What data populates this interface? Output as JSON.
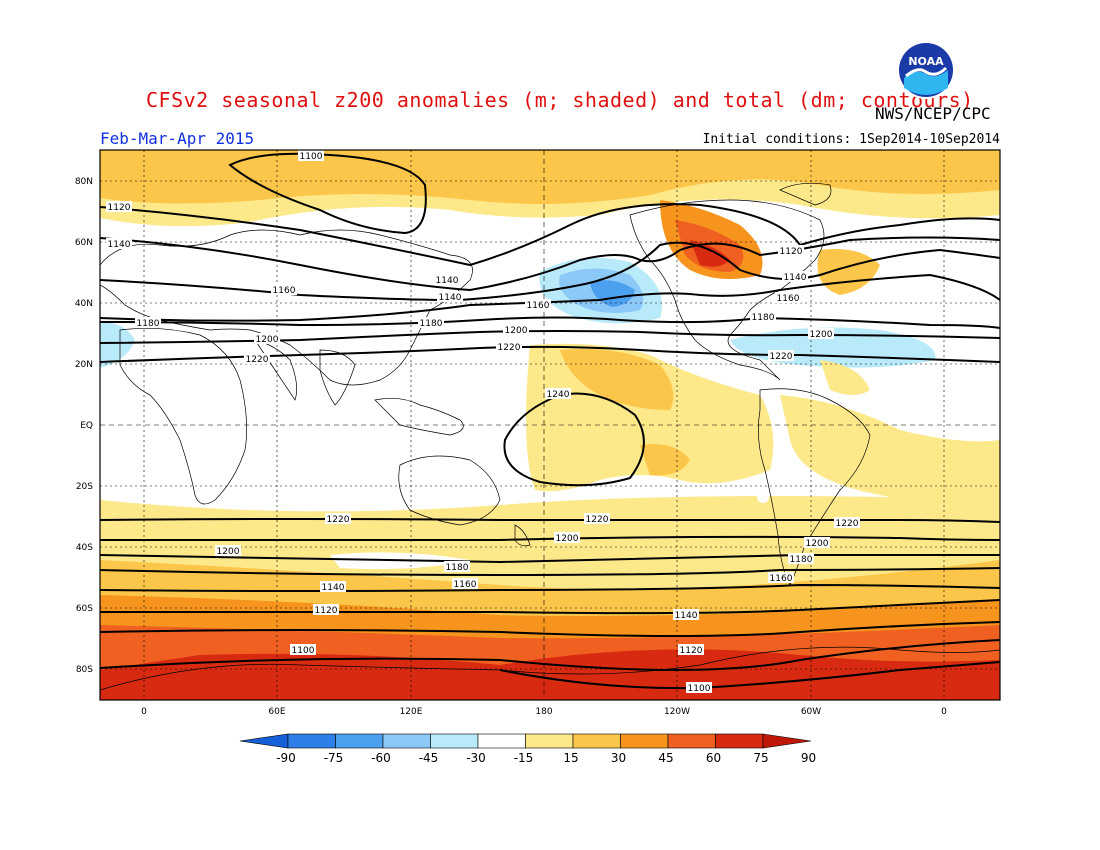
{
  "header": {
    "title": "CFSv2 seasonal z200 anomalies (m; shaded) and total (dm; contours)",
    "agency": "NWS/NCEP/CPC",
    "season": "Feb-Mar-Apr 2015",
    "initial_conditions": "Initial conditions: 1Sep2014-10Sep2014",
    "logo_text": "NOAA"
  },
  "map": {
    "lat_labels": [
      "80N",
      "60N",
      "40N",
      "20N",
      "EQ",
      "20S",
      "40S",
      "60S",
      "80S"
    ],
    "lon_labels": [
      "0",
      "60E",
      "120E",
      "180",
      "120W",
      "60W",
      "0"
    ],
    "contours": [
      {
        "value": "1100",
        "label": "1100"
      },
      {
        "value": "1120",
        "label": "1120"
      },
      {
        "value": "1140",
        "label": "1140"
      },
      {
        "value": "1160",
        "label": "1160"
      },
      {
        "value": "1180",
        "label": "1180"
      },
      {
        "value": "1200",
        "label": "1200"
      },
      {
        "value": "1220",
        "label": "1220"
      },
      {
        "value": "1240",
        "label": "1240"
      }
    ]
  },
  "colorbar": {
    "labels": [
      "-90",
      "-75",
      "-60",
      "-45",
      "-30",
      "-15",
      "15",
      "30",
      "45",
      "60",
      "75",
      "90"
    ],
    "colors": [
      "#1560d8",
      "#2e80e8",
      "#4ca0f0",
      "#8cc8f8",
      "#b8eafa",
      "#ffffff",
      "#fde88a",
      "#fcc64a",
      "#f7941d",
      "#f06020",
      "#d82a10",
      "#c01808"
    ]
  }
}
